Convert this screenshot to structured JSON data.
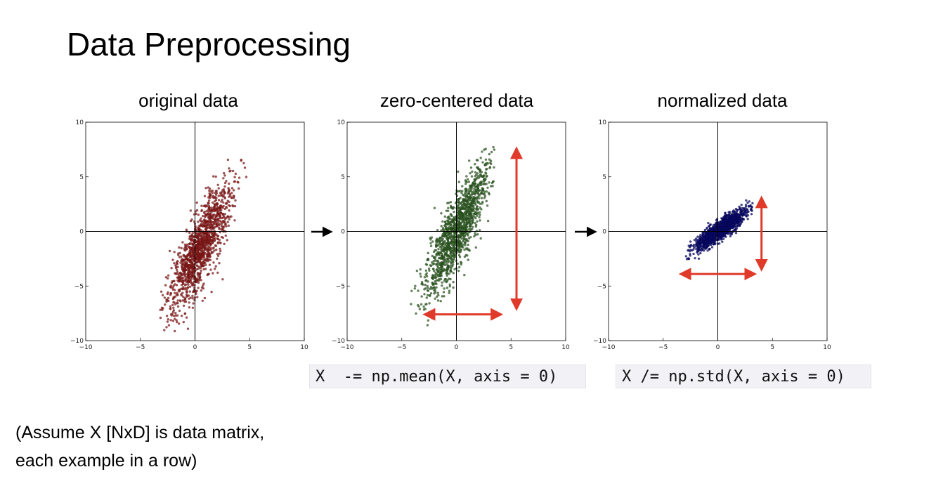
{
  "slide": {
    "title": "Data Preprocessing",
    "caption_lines": [
      "(Assume X [NxD] is data matrix,",
      "each example in a row)"
    ]
  },
  "code": {
    "zero_center": "X  -= np.mean(X, axis = 0)",
    "normalize": "X /= np.std(X, axis = 0)"
  },
  "chart_data": [
    {
      "type": "scatter",
      "title": "original data",
      "title_color": "#8b1a1a",
      "point_color": "#8b1a1a",
      "xlim": [
        -10,
        10
      ],
      "ylim": [
        -10,
        10
      ],
      "xticks": [
        -10,
        -5,
        0,
        5,
        10
      ],
      "yticks": [
        -10,
        -5,
        0,
        5,
        10
      ],
      "tick_labels": [
        "−10",
        "−5",
        "0",
        "5",
        "10"
      ],
      "cluster": {
        "center": [
          0.5,
          -1.5
        ],
        "spread_along": 3.2,
        "spread_across": 0.75,
        "slope": 2.3,
        "x_range": [
          -3.5,
          5.0
        ],
        "y_range": [
          -9.3,
          7.6
        ]
      },
      "arrows": []
    },
    {
      "type": "scatter",
      "title": "zero-centered data",
      "title_color": "#3d7a28",
      "point_color": "#2f5e23",
      "xlim": [
        -10,
        10
      ],
      "ylim": [
        -10,
        10
      ],
      "xticks": [
        -10,
        -5,
        0,
        5,
        10
      ],
      "yticks": [
        -10,
        -5,
        0,
        5,
        10
      ],
      "tick_labels": [
        "−10",
        "−5",
        "0",
        "5",
        "10"
      ],
      "cluster": {
        "center": [
          0,
          0
        ],
        "spread_along": 3.2,
        "spread_across": 0.75,
        "slope": 2.3,
        "x_range": [
          -4.2,
          3.5
        ],
        "y_range": [
          -8.8,
          9.1
        ]
      },
      "arrows": [
        {
          "direction": "vertical",
          "from": [
            5.5,
            -7
          ],
          "to": [
            5.5,
            7.5
          ],
          "color": "#e03a2a"
        },
        {
          "direction": "horizontal",
          "from": [
            -2.8,
            -7.6
          ],
          "to": [
            4,
            -7.6
          ],
          "color": "#e03a2a"
        }
      ]
    },
    {
      "type": "scatter",
      "title": "normalized data",
      "title_color": "#1a1ab8",
      "point_color": "#0a0a6e",
      "xlim": [
        -10,
        10
      ],
      "ylim": [
        -10,
        10
      ],
      "xticks": [
        -10,
        -5,
        0,
        5,
        10
      ],
      "yticks": [
        -10,
        -5,
        0,
        5,
        10
      ],
      "tick_labels": [
        "−10",
        "−5",
        "0",
        "5",
        "10"
      ],
      "cluster": {
        "center": [
          0.3,
          0.2
        ],
        "spread_along": 1.45,
        "spread_across": 0.35,
        "slope": 0.75,
        "x_range": [
          -3.2,
          3.2
        ],
        "y_range": [
          -3.1,
          3.4
        ]
      },
      "arrows": [
        {
          "direction": "vertical",
          "from": [
            4,
            -3.4
          ],
          "to": [
            4,
            3.0
          ],
          "color": "#e03a2a"
        },
        {
          "direction": "horizontal",
          "from": [
            -3.3,
            -3.9
          ],
          "to": [
            3.3,
            -3.9
          ],
          "color": "#e03a2a"
        }
      ]
    }
  ],
  "flow_arrows": [
    {
      "color": "#000000"
    },
    {
      "color": "#000000"
    }
  ]
}
